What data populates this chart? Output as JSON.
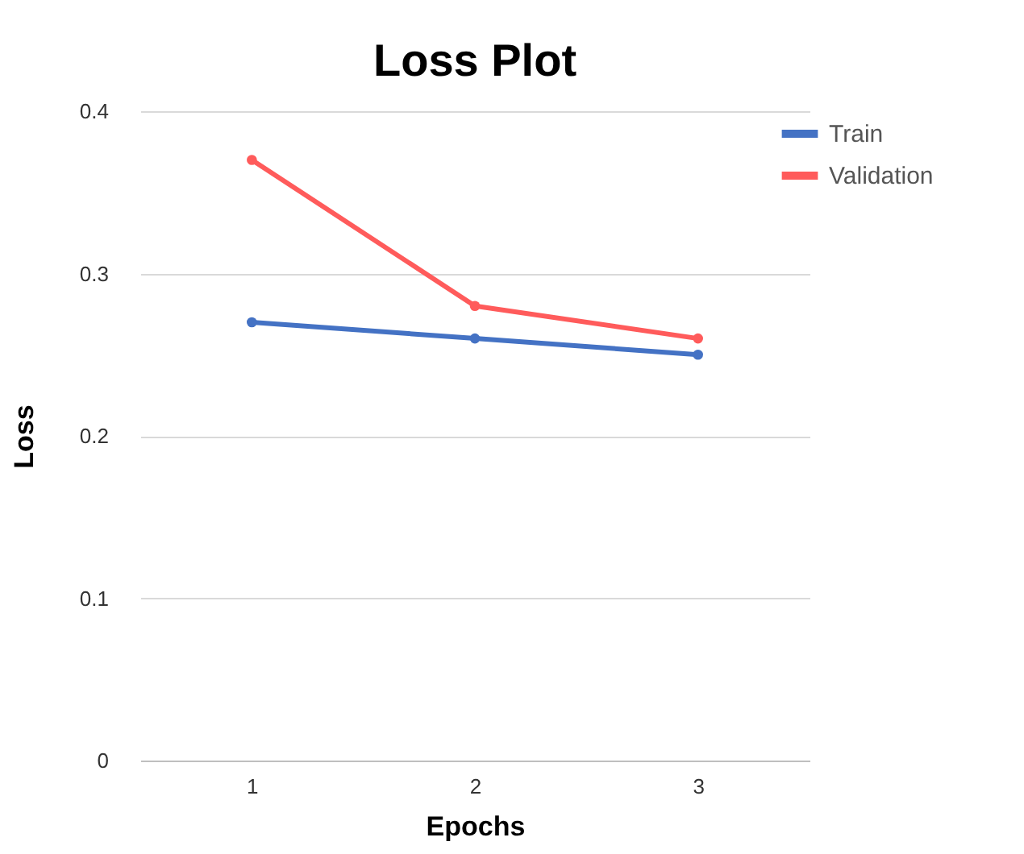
{
  "chart_data": {
    "type": "line",
    "title": "Loss Plot",
    "xlabel": "Epochs",
    "ylabel": "Loss",
    "categories": [
      "1",
      "2",
      "3"
    ],
    "series": [
      {
        "name": "Train",
        "color": "#4472c4",
        "values": [
          0.27,
          0.26,
          0.25
        ]
      },
      {
        "name": "Validation",
        "color": "#ff5b5b",
        "values": [
          0.37,
          0.28,
          0.26
        ]
      }
    ],
    "ylim": [
      0,
      0.4
    ],
    "yticks": [
      0,
      0.1,
      0.2,
      0.3,
      0.4
    ],
    "grid": "y",
    "legend": "right",
    "marker": "circle",
    "line_style": "solid"
  }
}
